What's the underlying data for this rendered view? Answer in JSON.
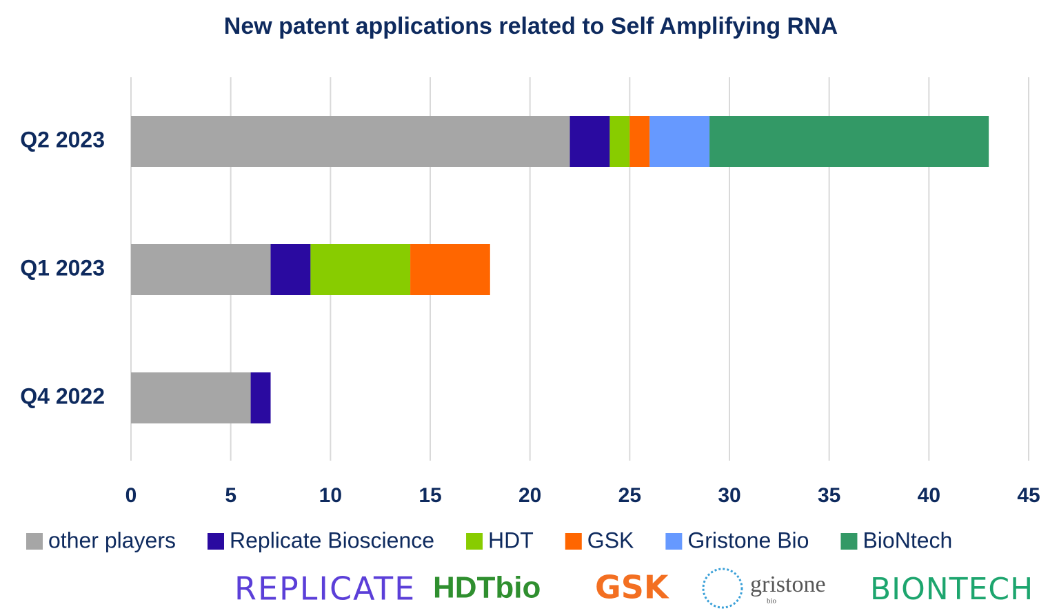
{
  "chart_data": {
    "type": "stacked-barh",
    "title": "New patent applications related to Self Amplifying RNA",
    "categories": [
      "Q2 2023",
      "Q1 2023",
      "Q4 2022"
    ],
    "series": [
      {
        "name": "other players",
        "color": "#a6a6a6",
        "values": [
          22,
          7,
          6
        ]
      },
      {
        "name": "Replicate Bioscience",
        "color": "#2a0aa0",
        "values": [
          2,
          2,
          1
        ]
      },
      {
        "name": "HDT",
        "color": "#88cc00",
        "values": [
          1,
          5,
          0
        ]
      },
      {
        "name": "GSK",
        "color": "#ff6600",
        "values": [
          1,
          4,
          0
        ]
      },
      {
        "name": "Gristone Bio",
        "color": "#6699ff",
        "values": [
          3,
          0,
          0
        ]
      },
      {
        "name": "BioNtech",
        "color": "#339966",
        "values": [
          14,
          0,
          0
        ]
      }
    ],
    "xlim": [
      0,
      45
    ],
    "xticks": [
      0,
      5,
      10,
      15,
      20,
      25,
      30,
      35,
      40,
      45
    ],
    "grid": true,
    "legend": "bottom"
  },
  "logos": [
    {
      "text": "REPLICATE",
      "color": "#5b3fd8"
    },
    {
      "text": "HDTbio",
      "color": "#2f8f2f"
    },
    {
      "text": "GSK",
      "color": "#f36f21"
    },
    {
      "text": "gristone",
      "color": "#555555"
    },
    {
      "text": "bio",
      "color": "#555555"
    },
    {
      "text": "BIONTECH",
      "color": "#1da56e"
    }
  ]
}
